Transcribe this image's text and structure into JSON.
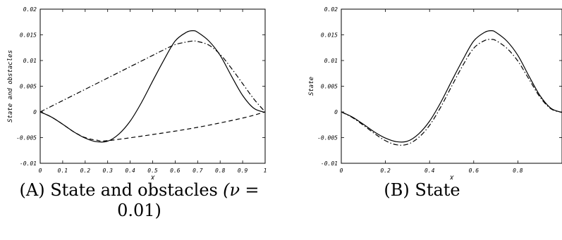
{
  "captions": {
    "a": {
      "tag": "(A)",
      "words": [
        "State",
        "and",
        "obstacles",
        "(ν",
        "="
      ],
      "line2": "0.01)"
    },
    "b": {
      "tag": "(B)",
      "text": "State"
    }
  },
  "chart_data": [
    {
      "type": "line",
      "title": "",
      "xlabel": "X",
      "ylabel": "State and obstacles",
      "xlim": [
        0,
        1
      ],
      "ylim": [
        -0.01,
        0.02
      ],
      "xticks": [
        "0",
        "0.1",
        "0.2",
        "0.3",
        "0.4",
        "0.5",
        "0.6",
        "0.7",
        "0.8",
        "0.9",
        "1"
      ],
      "yticks": [
        "-0.01",
        "-0.005",
        "0",
        "0.005",
        "0.01",
        "0.015",
        "0.02"
      ],
      "grid": false,
      "series": [
        {
          "style": "solid",
          "x": [
            0,
            0.05,
            0.1,
            0.15,
            0.2,
            0.25,
            0.3,
            0.35,
            0.4,
            0.45,
            0.5,
            0.55,
            0.6,
            0.65,
            0.68,
            0.7,
            0.75,
            0.8,
            0.85,
            0.9,
            0.95,
            1.0
          ],
          "y": [
            0,
            -0.001,
            -0.0024,
            -0.0039,
            -0.0051,
            -0.0058,
            -0.0057,
            -0.0043,
            -0.0018,
            0.0018,
            0.006,
            0.0101,
            0.0138,
            0.0155,
            0.0158,
            0.0155,
            0.0138,
            0.011,
            0.007,
            0.0032,
            0.0007,
            -0.0001
          ]
        },
        {
          "style": "dashed",
          "x": [
            0,
            0.05,
            0.1,
            0.15,
            0.2,
            0.25,
            0.3,
            0.5,
            0.7,
            0.9,
            1.0
          ],
          "y": [
            0,
            -0.001,
            -0.0024,
            -0.0039,
            -0.005,
            -0.0055,
            -0.0056,
            -0.0044,
            -0.003,
            -0.0012,
            0
          ]
        },
        {
          "style": "dash-dot",
          "x": [
            0,
            0.1,
            0.2,
            0.3,
            0.4,
            0.5,
            0.55,
            0.6,
            0.65,
            0.68,
            0.7,
            0.75,
            0.8,
            0.85,
            0.9,
            0.95,
            1.0
          ],
          "y": [
            0,
            0.0022,
            0.0044,
            0.0066,
            0.0088,
            0.011,
            0.0121,
            0.0131,
            0.0136,
            0.0138,
            0.0137,
            0.013,
            0.0112,
            0.0085,
            0.0055,
            0.0025,
            0
          ]
        }
      ]
    },
    {
      "type": "line",
      "title": "",
      "xlabel": "X",
      "ylabel": "State",
      "xlim": [
        0,
        1
      ],
      "ylim": [
        -0.01,
        0.02
      ],
      "xticks": [
        "0",
        "0.2",
        "0.4",
        "0.6",
        "0.8"
      ],
      "yticks": [
        "-0.01",
        "-0.005",
        "0",
        "0.005",
        "0.01",
        "0.015",
        "0.02"
      ],
      "grid": false,
      "series": [
        {
          "style": "solid",
          "x": [
            0,
            0.05,
            0.1,
            0.15,
            0.2,
            0.25,
            0.3,
            0.35,
            0.4,
            0.45,
            0.5,
            0.55,
            0.6,
            0.65,
            0.68,
            0.7,
            0.75,
            0.8,
            0.85,
            0.9,
            0.95,
            1.0
          ],
          "y": [
            0,
            -0.001,
            -0.0024,
            -0.0039,
            -0.0051,
            -0.0058,
            -0.0057,
            -0.0043,
            -0.0018,
            0.0018,
            0.006,
            0.0101,
            0.0138,
            0.0155,
            0.0158,
            0.0155,
            0.0138,
            0.011,
            0.007,
            0.0032,
            0.0007,
            -0.0001
          ]
        },
        {
          "style": "dash-dot",
          "x": [
            0,
            0.05,
            0.1,
            0.15,
            0.2,
            0.25,
            0.3,
            0.35,
            0.4,
            0.45,
            0.5,
            0.55,
            0.6,
            0.65,
            0.68,
            0.7,
            0.75,
            0.8,
            0.85,
            0.9,
            0.95,
            1.0
          ],
          "y": [
            0,
            -0.0011,
            -0.0026,
            -0.0042,
            -0.0056,
            -0.0064,
            -0.0063,
            -0.005,
            -0.0026,
            0.0009,
            0.005,
            0.009,
            0.0124,
            0.0139,
            0.0141,
            0.0139,
            0.0124,
            0.0099,
            0.0064,
            0.0029,
            0.0006,
            -0.0001
          ]
        }
      ]
    }
  ]
}
